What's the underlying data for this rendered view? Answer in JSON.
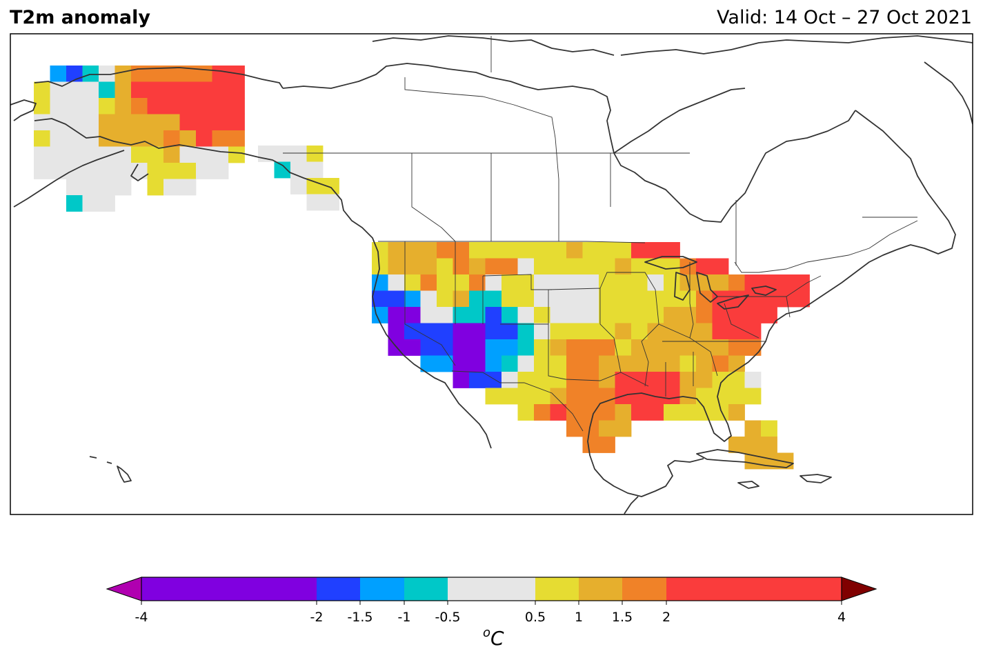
{
  "title": "T2m anomaly",
  "valid_period": "Valid: 14 Oct – 27 Oct 2021",
  "colorbar": {
    "unit_sup": "o",
    "unit_main": "C",
    "ticks": [
      "-4",
      "-2",
      "-1.5",
      "-1",
      "-0.5",
      "0.5",
      "1",
      "1.5",
      "2",
      "4"
    ],
    "tick_values": [
      -4,
      -2,
      -1.5,
      -1,
      -0.5,
      0.5,
      1,
      1.5,
      2,
      4
    ],
    "under_color": "#b000b0",
    "over_color": "#800000",
    "bins": [
      {
        "from": -4,
        "to": -2,
        "color": "#8000e0"
      },
      {
        "from": -2,
        "to": -1.5,
        "color": "#2040ff"
      },
      {
        "from": -1.5,
        "to": -1,
        "color": "#00a0ff"
      },
      {
        "from": -1,
        "to": -0.5,
        "color": "#00c8c8"
      },
      {
        "from": -0.5,
        "to": 0.5,
        "color": "#e6e6e6"
      },
      {
        "from": 0.5,
        "to": 1,
        "color": "#e6dc32"
      },
      {
        "from": 1,
        "to": 1.5,
        "color": "#e6af2d"
      },
      {
        "from": 1.5,
        "to": 2,
        "color": "#f08228"
      },
      {
        "from": 2,
        "to": 4,
        "color": "#fa3c3c"
      }
    ]
  },
  "legend_colors": {
    "V": "#8000e0",
    "B": "#2040ff",
    "C": "#00a0ff",
    "T": "#00c8c8",
    "W": "#e6e6e6",
    "Y": "#e6dc32",
    "G": "#e6af2d",
    "O": "#f08228",
    "R": "#fa3c3c"
  },
  "anomaly_grid": [
    {
      "region": "alaska",
      "rows": [
        "...CBTWGOOOOORR",
        "..YWWWTGRRRRRRR",
        "..YWWWYGORRRRRR",
        "..WWWWGGGGGRRRR",
        "..YWWWGGGGOGROO",
        "..WWWWWWYYGWWWY",
        "..WWWWWWWYYYWW.",
        "....WWWW.YWW...",
        "....TWW.......",
        "...............",
        "..............."
      ]
    },
    {
      "region": "panhandle",
      "rows": [
        "WWWY",
        ".TWW",
        "..WYY",
        "...WW"
      ]
    },
    {
      "region": "conus",
      "rows": [
        "..YGGGOOYYYYYYGYYYRRR........",
        "..YGGGYOGOOWYYYYYGYYYORR.....",
        "..CWYOYYOWYYWWWWYYYWYGGGORRRR",
        "..BBCWYGTTYYWWWWYYYYYYORRRRRR",
        "..CVVWWTTBTWYWWWYYYYGGORRRR..",
        "...VBBBVVBBTWYYYYGYGGGGRRR...",
        "...VVBBVVCCTYGOOOYGGGGGGOO...",
        ".....CCVVCTWYYOOGGGGGYGOG....",
        ".......VBBWYYYOOGRRRRGGYYW...",
        ".........YYYYGOOORRRRGYYYY...",
        "...........YOROOOGRRYYYYG....",
        "..............OOGG.......GY..",
        "...............OO.......GGG..",
        ".........................GGG."
      ]
    }
  ]
}
